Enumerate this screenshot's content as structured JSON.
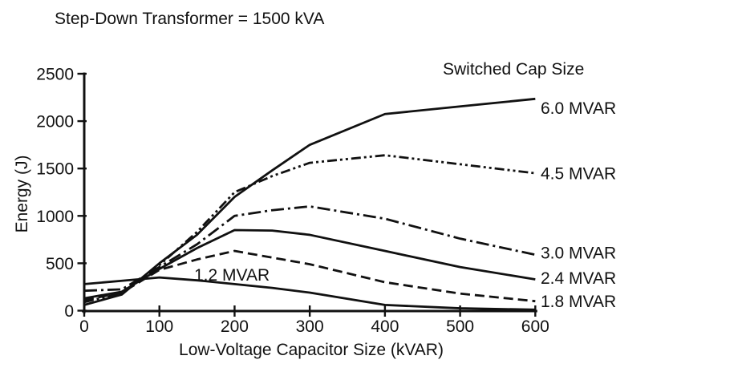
{
  "chart_data": {
    "type": "line",
    "title": "Step-Down Transformer = 1500 kVA",
    "xlabel": "Low-Voltage Capacitor Size (kVAR)",
    "ylabel": "Energy (J)",
    "legend_title": "Switched Cap Size",
    "xlim": [
      0,
      600
    ],
    "ylim": [
      0,
      2500
    ],
    "xticks": [
      0,
      100,
      200,
      300,
      400,
      500,
      600
    ],
    "yticks": [
      0,
      500,
      1000,
      1500,
      2000,
      2500
    ],
    "grid": false,
    "legend_position": "right-of-lines",
    "x": [
      0,
      50,
      100,
      150,
      200,
      250,
      300,
      400,
      500,
      600
    ],
    "series": [
      {
        "name": "6.0 MVAR",
        "style": "solid",
        "label_placement": "right",
        "values": [
          60,
          170,
          500,
          800,
          1200,
          1480,
          1750,
          2075,
          2155,
          2235
        ]
      },
      {
        "name": "4.5 MVAR",
        "style": "dashdotdot",
        "label_placement": "right",
        "values": [
          90,
          185,
          480,
          830,
          1250,
          1420,
          1560,
          1640,
          1545,
          1450
        ]
      },
      {
        "name": "3.0 MVAR",
        "style": "dashdot",
        "label_placement": "right",
        "values": [
          210,
          225,
          460,
          700,
          1000,
          1060,
          1100,
          970,
          760,
          590
        ]
      },
      {
        "name": "2.4 MVAR",
        "style": "solid",
        "label_placement": "right",
        "values": [
          130,
          200,
          440,
          660,
          850,
          845,
          800,
          630,
          460,
          330
        ]
      },
      {
        "name": "1.8 MVAR",
        "style": "dashed",
        "label_placement": "right",
        "values": [
          110,
          190,
          430,
          540,
          630,
          560,
          490,
          300,
          180,
          100
        ]
      },
      {
        "name": "1.2 MVAR",
        "style": "solid",
        "label_placement": "inline",
        "values": [
          280,
          315,
          350,
          320,
          280,
          240,
          190,
          60,
          25,
          10
        ]
      }
    ]
  },
  "colors": {
    "line": "#111111",
    "text": "#111111",
    "background": "#ffffff"
  }
}
